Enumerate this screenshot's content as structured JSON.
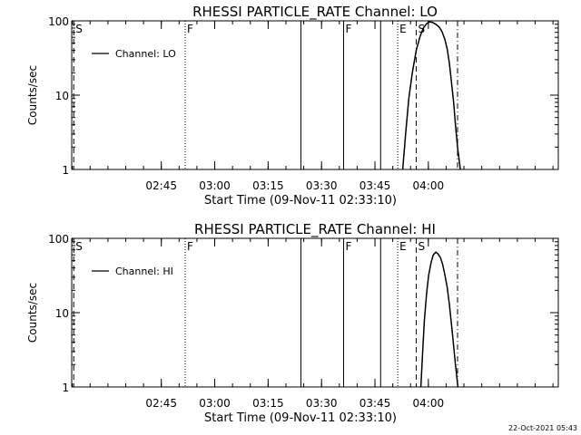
{
  "footer": {
    "timestamp": "22-Oct-2021 05:43"
  },
  "chart_data": [
    {
      "type": "line",
      "title": "RHESSI PARTICLE_RATE Channel: LO",
      "xlabel": "Start Time (09-Nov-11 02:33:10)",
      "ylabel": "Counts/sec",
      "yscale": "log",
      "ylim": [
        1,
        100
      ],
      "y_ticks": [
        {
          "value": 1,
          "label": "1"
        },
        {
          "value": 10,
          "label": "10"
        },
        {
          "value": 100,
          "label": "100"
        }
      ],
      "xlim_minutes": [
        -25.17,
        111.5
      ],
      "x_ticks": [
        {
          "minute": 0,
          "label": "02:45"
        },
        {
          "minute": 15,
          "label": "03:00"
        },
        {
          "minute": 30,
          "label": "03:15"
        },
        {
          "minute": 45,
          "label": "03:30"
        },
        {
          "minute": 60,
          "label": "03:45"
        },
        {
          "minute": 75,
          "label": "04:00"
        }
      ],
      "legend": {
        "label": "Channel: LO",
        "position": "top-left"
      },
      "series": [
        {
          "name": "Channel: LO",
          "x": [
            67.8,
            68.6,
            69.5,
            70.5,
            71.6,
            72.7,
            73.6,
            74.5,
            75.3,
            76.2,
            77.1,
            78.0,
            78.8,
            79.6,
            80.3,
            80.9,
            81.5,
            82.1,
            82.6,
            83.2,
            84.0
          ],
          "y": [
            1,
            3,
            9,
            20,
            40,
            62,
            80,
            92,
            97,
            95,
            90,
            83,
            72,
            57,
            42,
            27,
            15,
            8,
            4,
            2,
            1
          ]
        }
      ],
      "event_markers": [
        {
          "minute": -24.6,
          "label": "S",
          "style": "dashed"
        },
        {
          "minute": 6.7,
          "label": "F",
          "style": "dotted"
        },
        {
          "minute": 39.2,
          "label": "",
          "style": "solid"
        },
        {
          "minute": 51.2,
          "label": "F",
          "style": "solid"
        },
        {
          "minute": 61.6,
          "label": "",
          "style": "solid"
        },
        {
          "minute": 66.4,
          "label": "E",
          "style": "dotted"
        },
        {
          "minute": 71.6,
          "label": "S",
          "style": "dashed"
        },
        {
          "minute": 83.2,
          "label": "",
          "style": "dashdot"
        }
      ]
    },
    {
      "type": "line",
      "title": "RHESSI PARTICLE_RATE Channel: HI",
      "xlabel": "Start Time (09-Nov-11 02:33:10)",
      "ylabel": "Counts/sec",
      "yscale": "log",
      "ylim": [
        1,
        100
      ],
      "y_ticks": [
        {
          "value": 1,
          "label": "1"
        },
        {
          "value": 10,
          "label": "10"
        },
        {
          "value": 100,
          "label": "100"
        }
      ],
      "xlim_minutes": [
        -25.17,
        111.5
      ],
      "x_ticks": [
        {
          "minute": 0,
          "label": "02:45"
        },
        {
          "minute": 15,
          "label": "03:00"
        },
        {
          "minute": 30,
          "label": "03:15"
        },
        {
          "minute": 45,
          "label": "03:30"
        },
        {
          "minute": 60,
          "label": "03:45"
        },
        {
          "minute": 75,
          "label": "04:00"
        }
      ],
      "legend": {
        "label": "Channel: HI",
        "position": "top-left"
      },
      "series": [
        {
          "name": "Channel: HI",
          "x": [
            72.9,
            73.4,
            73.9,
            74.5,
            75.1,
            75.8,
            76.4,
            77.1,
            77.7,
            78.4,
            79.0,
            79.6,
            80.3,
            80.9,
            81.5,
            82.0,
            82.6,
            83.3
          ],
          "y": [
            1,
            3,
            8,
            18,
            32,
            48,
            60,
            65,
            62,
            55,
            45,
            33,
            22,
            13,
            7,
            4,
            2,
            1
          ]
        }
      ],
      "event_markers": [
        {
          "minute": -24.6,
          "label": "S",
          "style": "dashed"
        },
        {
          "minute": 6.7,
          "label": "F",
          "style": "dotted"
        },
        {
          "minute": 39.2,
          "label": "",
          "style": "solid"
        },
        {
          "minute": 51.2,
          "label": "F",
          "style": "solid"
        },
        {
          "minute": 61.6,
          "label": "",
          "style": "solid"
        },
        {
          "minute": 66.4,
          "label": "E",
          "style": "dotted"
        },
        {
          "minute": 71.6,
          "label": "S",
          "style": "dashed"
        },
        {
          "minute": 83.2,
          "label": "",
          "style": "dashdot"
        }
      ]
    }
  ]
}
